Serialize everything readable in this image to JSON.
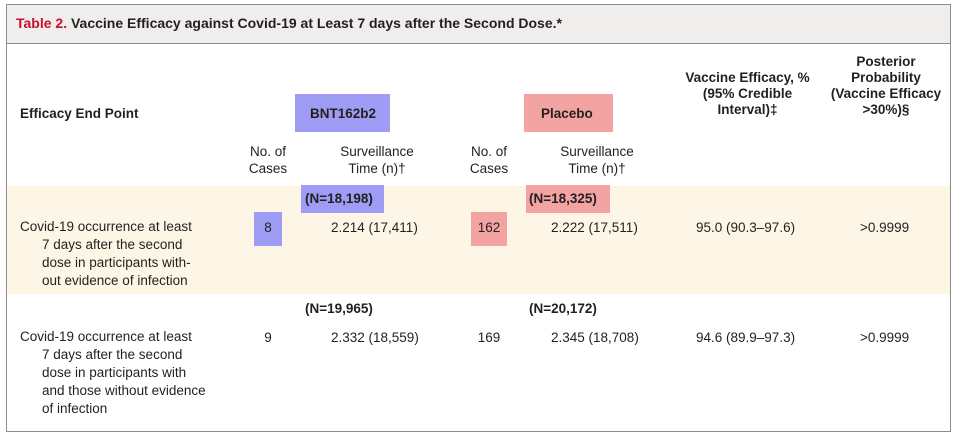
{
  "title": {
    "number": "Table 2.",
    "text": " Vaccine Efficacy against Covid-19 at Least 7 days after the Second Dose.*"
  },
  "headers": {
    "endpoint": "Efficacy End Point",
    "bnt": "BNT162b2",
    "placebo": "Placebo",
    "ve_line1": "Vaccine Efficacy, %",
    "ve_line2": "(95% Credible",
    "ve_line3": "Interval)‡",
    "pp_line1": "Posterior",
    "pp_line2": "Probability",
    "pp_line3": "(Vaccine Efficacy",
    "pp_line4": ">30%)§",
    "cases_line1": "No. of",
    "cases_line2": "Cases",
    "surv_line1": "Surveillance",
    "surv_line2": "Time (n)†"
  },
  "rows": [
    {
      "endpoint_lines": [
        "Covid-19 occurrence at least",
        "7 days after the second",
        "dose in participants with-",
        "out evidence of infection"
      ],
      "bnt_n": "(N=18,198)",
      "placebo_n": "(N=18,325)",
      "bnt_cases": "8",
      "bnt_surv": "2.214 (17,411)",
      "placebo_cases": "162",
      "placebo_surv": "2.222 (17,511)",
      "efficacy": "95.0 (90.3–97.6)",
      "posterior": ">0.9999"
    },
    {
      "endpoint_lines": [
        "Covid-19 occurrence at least",
        "7 days after the second",
        "dose in participants with",
        "and those without evidence",
        "of infection"
      ],
      "bnt_n": "(N=19,965)",
      "placebo_n": "(N=20,172)",
      "bnt_cases": "9",
      "bnt_surv": "2.332 (18,559)",
      "placebo_cases": "169",
      "placebo_surv": "2.345 (18,708)",
      "efficacy": "94.6 (89.9–97.3)",
      "posterior": ">0.9999"
    }
  ],
  "colors": {
    "title_number": "#c8102e",
    "row_highlight_bg": "#fdf6e7",
    "bnt_highlight": "#9f9cf5",
    "placebo_highlight": "#f4a3a3"
  }
}
